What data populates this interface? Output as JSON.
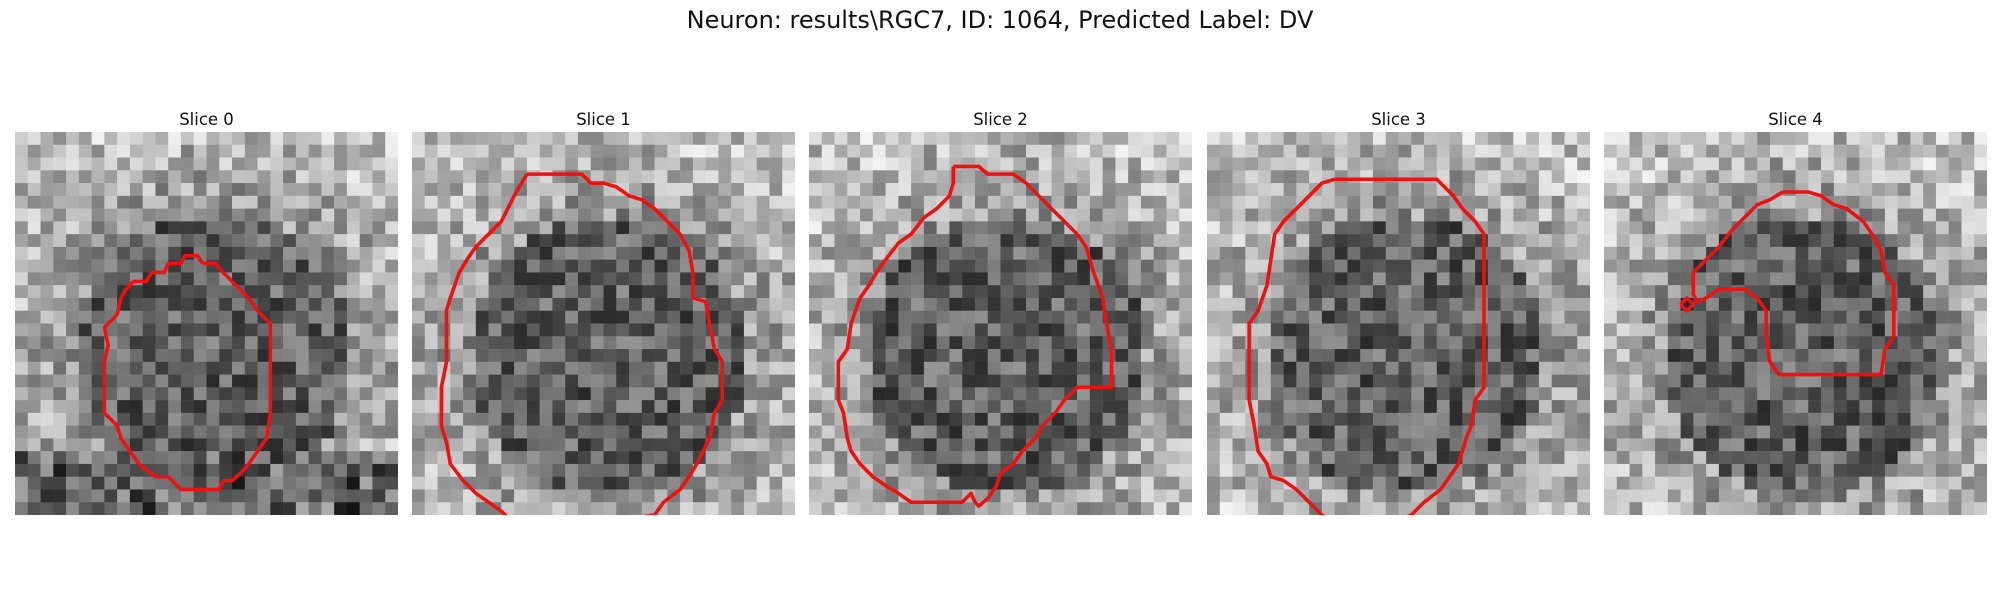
{
  "title": "Neuron: results\\RGC7, ID: 1064, Predicted Label: DV",
  "contour_color": "#ee1111",
  "slices": [
    {
      "title": "Slice 0",
      "description": "noisy grayscale microscopy patch with a small octagonal red outline around a darker cell body, dark region along bottom-right",
      "contours": [
        [
          [
            14.7,
            10.3
          ],
          [
            14.3,
            9.7
          ],
          [
            13.3,
            9.7
          ],
          [
            13,
            10.3
          ],
          [
            12,
            10.3
          ],
          [
            11.7,
            11.0
          ],
          [
            10.7,
            11.0
          ],
          [
            10.3,
            11.7
          ],
          [
            9.3,
            11.7
          ],
          [
            8.7,
            12.3
          ],
          [
            8.3,
            13.0
          ],
          [
            8.0,
            14.3
          ],
          [
            7.0,
            15.3
          ],
          [
            7.3,
            16.7
          ],
          [
            7.0,
            18.0
          ],
          [
            7.0,
            22.0
          ],
          [
            8.0,
            23.0
          ],
          [
            8.3,
            24.0
          ],
          [
            9.0,
            25.0
          ],
          [
            9.7,
            26.0
          ],
          [
            11.0,
            27.0
          ],
          [
            12.0,
            27.0
          ],
          [
            13.0,
            28.0
          ],
          [
            16.0,
            28.0
          ],
          [
            16.3,
            27.3
          ],
          [
            17.0,
            27.3
          ],
          [
            17.7,
            26.7
          ],
          [
            18.3,
            26.0
          ],
          [
            19.0,
            25.0
          ],
          [
            19.7,
            24.0
          ],
          [
            20.0,
            22.0
          ],
          [
            20.0,
            15.0
          ],
          [
            19.0,
            14.0
          ],
          [
            18.3,
            13.0
          ],
          [
            17.3,
            12.0
          ],
          [
            16.3,
            11.0
          ],
          [
            15.7,
            10.3
          ],
          [
            14.7,
            10.3
          ]
        ]
      ]
    },
    {
      "title": "Slice 1",
      "description": "noisy grayscale patch with large rounded red outline around a dark cell body",
      "contours": [
        [
          [
            9.0,
            3.3
          ],
          [
            12.0,
            3.3
          ],
          [
            13.3,
            3.3
          ],
          [
            14.0,
            4.0
          ],
          [
            15.0,
            4.0
          ],
          [
            16.0,
            4.3
          ],
          [
            17.0,
            5.0
          ],
          [
            18.0,
            5.3
          ],
          [
            19.0,
            6.0
          ],
          [
            20.0,
            7.0
          ],
          [
            21.0,
            8.0
          ],
          [
            21.7,
            9.3
          ],
          [
            22.0,
            11.0
          ],
          [
            22.0,
            13.0
          ],
          [
            23.0,
            13.3
          ],
          [
            23.3,
            15.0
          ],
          [
            23.7,
            17.0
          ],
          [
            24.3,
            18.0
          ],
          [
            24.3,
            21.0
          ],
          [
            23.7,
            22.0
          ],
          [
            23.3,
            24.0
          ],
          [
            22.3,
            26.0
          ],
          [
            21.7,
            27.0
          ],
          [
            21.0,
            28.0
          ],
          [
            19.7,
            29.0
          ],
          [
            19.0,
            30.0
          ],
          [
            17.0,
            30.3
          ],
          [
            16.3,
            31.0
          ],
          [
            15.0,
            31.3
          ],
          [
            14.0,
            32.0
          ],
          [
            12.0,
            32.0
          ],
          [
            11.0,
            31.3
          ],
          [
            10.0,
            31.0
          ],
          [
            8.0,
            30.7
          ],
          [
            7.0,
            29.7
          ],
          [
            6.0,
            29.0
          ],
          [
            5.0,
            28.3
          ],
          [
            4.0,
            27.3
          ],
          [
            3.0,
            26.0
          ],
          [
            2.7,
            24.3
          ],
          [
            2.3,
            23.0
          ],
          [
            2.3,
            20.0
          ],
          [
            2.7,
            18.0
          ],
          [
            2.7,
            14.0
          ],
          [
            3.0,
            13.0
          ],
          [
            3.7,
            11.0
          ],
          [
            4.3,
            10.0
          ],
          [
            5.0,
            9.0
          ],
          [
            6.0,
            8.0
          ],
          [
            7.0,
            7.0
          ],
          [
            8.0,
            5.0
          ],
          [
            9.0,
            3.3
          ]
        ]
      ]
    },
    {
      "title": "Slice 2",
      "description": "noisy grayscale patch with irregular red outline around a darker cell body, notch at bottom",
      "contours": [
        [
          [
            11.3,
            2.7
          ],
          [
            13.3,
            2.7
          ],
          [
            14.0,
            3.3
          ],
          [
            16.0,
            3.3
          ],
          [
            17.0,
            4.0
          ],
          [
            18.0,
            5.0
          ],
          [
            19.0,
            6.0
          ],
          [
            20.0,
            7.0
          ],
          [
            21.0,
            8.0
          ],
          [
            21.7,
            9.0
          ],
          [
            22.0,
            10.0
          ],
          [
            22.3,
            11.0
          ],
          [
            23.0,
            13.0
          ],
          [
            23.3,
            15.0
          ],
          [
            23.7,
            17.0
          ],
          [
            23.7,
            20.0
          ],
          [
            21.0,
            20.0
          ],
          [
            20.0,
            21.0
          ],
          [
            19.3,
            22.0
          ],
          [
            18.3,
            23.0
          ],
          [
            17.7,
            24.0
          ],
          [
            16.7,
            25.0
          ],
          [
            16.0,
            26.0
          ],
          [
            15.0,
            26.7
          ],
          [
            14.7,
            27.7
          ],
          [
            14.0,
            28.7
          ],
          [
            13.3,
            29.3
          ],
          [
            13.0,
            29.0
          ],
          [
            12.7,
            28.3
          ],
          [
            12.3,
            28.7
          ],
          [
            12.0,
            29.0
          ],
          [
            11.0,
            29.0
          ],
          [
            9.0,
            29.0
          ],
          [
            8.0,
            29.0
          ],
          [
            7.0,
            28.3
          ],
          [
            6.0,
            27.7
          ],
          [
            5.0,
            27.0
          ],
          [
            4.0,
            26.0
          ],
          [
            3.3,
            25.0
          ],
          [
            3.0,
            24.0
          ],
          [
            2.7,
            22.0
          ],
          [
            2.3,
            21.0
          ],
          [
            2.3,
            18.0
          ],
          [
            3.0,
            17.0
          ],
          [
            3.3,
            15.0
          ],
          [
            4.0,
            13.0
          ],
          [
            4.7,
            12.0
          ],
          [
            5.3,
            11.0
          ],
          [
            6.0,
            10.0
          ],
          [
            7.0,
            8.7
          ],
          [
            8.0,
            8.0
          ],
          [
            9.0,
            6.7
          ],
          [
            10.0,
            6.0
          ],
          [
            11.0,
            5.0
          ],
          [
            11.3,
            4.0
          ],
          [
            11.3,
            2.7
          ]
        ]
      ]
    },
    {
      "title": "Slice 3",
      "description": "noisy grayscale patch with large polygonal red outline around a dark cell body",
      "contours": [
        [
          [
            10.0,
            3.7
          ],
          [
            15.3,
            3.7
          ],
          [
            18.0,
            3.7
          ],
          [
            19.3,
            5.0
          ],
          [
            20.0,
            6.0
          ],
          [
            21.0,
            7.0
          ],
          [
            21.7,
            8.0
          ],
          [
            21.7,
            10.0
          ],
          [
            21.7,
            13.0
          ],
          [
            21.7,
            15.0
          ],
          [
            21.7,
            18.0
          ],
          [
            21.7,
            20.0
          ],
          [
            21.0,
            21.0
          ],
          [
            20.7,
            23.0
          ],
          [
            20.3,
            24.0
          ],
          [
            19.7,
            26.0
          ],
          [
            19.0,
            27.0
          ],
          [
            18.3,
            28.0
          ],
          [
            17.0,
            29.0
          ],
          [
            16.0,
            30.0
          ],
          [
            15.3,
            30.3
          ],
          [
            14.0,
            31.3
          ],
          [
            13.0,
            31.3
          ],
          [
            12.0,
            31.3
          ],
          [
            11.0,
            31.3
          ],
          [
            10.3,
            30.7
          ],
          [
            9.0,
            30.0
          ],
          [
            8.0,
            29.0
          ],
          [
            7.0,
            28.0
          ],
          [
            6.0,
            27.3
          ],
          [
            5.0,
            27.0
          ],
          [
            4.7,
            26.0
          ],
          [
            4.0,
            25.0
          ],
          [
            3.7,
            23.0
          ],
          [
            3.3,
            21.0
          ],
          [
            3.3,
            18.0
          ],
          [
            3.3,
            15.0
          ],
          [
            4.0,
            14.0
          ],
          [
            4.7,
            12.0
          ],
          [
            5.0,
            10.0
          ],
          [
            5.3,
            8.0
          ],
          [
            6.0,
            7.0
          ],
          [
            7.0,
            6.0
          ],
          [
            8.0,
            5.0
          ],
          [
            9.0,
            4.0
          ],
          [
            10.0,
            3.7
          ]
        ]
      ]
    },
    {
      "title": "Slice 4",
      "description": "noisy grayscale patch with a hook-shaped red outline and a small red diamond on the left",
      "contours": [
        [
          [
            14.0,
            4.7
          ],
          [
            16.0,
            4.7
          ],
          [
            17.0,
            5.0
          ],
          [
            18.0,
            5.7
          ],
          [
            19.0,
            6.0
          ],
          [
            20.3,
            7.0
          ],
          [
            21.0,
            8.0
          ],
          [
            21.7,
            9.3
          ],
          [
            22.0,
            11.0
          ],
          [
            22.7,
            12.0
          ],
          [
            22.7,
            16.0
          ],
          [
            22.0,
            17.0
          ],
          [
            21.7,
            19.0
          ],
          [
            20.7,
            19.0
          ],
          [
            19.3,
            19.0
          ],
          [
            16.3,
            19.0
          ],
          [
            13.7,
            19.0
          ],
          [
            13.0,
            18.0
          ],
          [
            12.7,
            16.0
          ],
          [
            12.7,
            14.0
          ],
          [
            12.0,
            13.0
          ],
          [
            11.0,
            12.3
          ],
          [
            9.0,
            12.3
          ],
          [
            8.0,
            13.0
          ],
          [
            7.3,
            13.3
          ],
          [
            7.0,
            12.7
          ],
          [
            7.0,
            11.0
          ],
          [
            8.0,
            10.0
          ],
          [
            9.0,
            9.0
          ],
          [
            10.0,
            7.7
          ],
          [
            11.0,
            6.7
          ],
          [
            12.0,
            5.7
          ],
          [
            13.0,
            5.3
          ],
          [
            14.0,
            4.7
          ]
        ],
        [
          [
            6.0,
            13.5
          ],
          [
            6.5,
            13.0
          ],
          [
            7.0,
            13.5
          ],
          [
            6.5,
            14.0
          ],
          [
            6.0,
            13.5
          ]
        ]
      ]
    }
  ]
}
